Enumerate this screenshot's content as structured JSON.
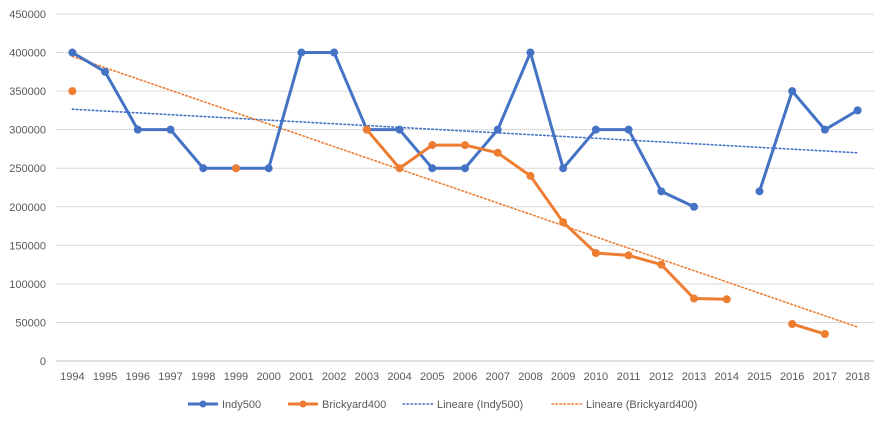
{
  "chart_data": {
    "type": "line",
    "title": "",
    "xlabel": "",
    "ylabel": "",
    "categories": [
      "1994",
      "1995",
      "1996",
      "1997",
      "1998",
      "1999",
      "2000",
      "2001",
      "2002",
      "2003",
      "2004",
      "2005",
      "2006",
      "2007",
      "2008",
      "2009",
      "2010",
      "2011",
      "2012",
      "2013",
      "2014",
      "2015",
      "2016",
      "2017",
      "2018"
    ],
    "ylim": [
      0,
      450000
    ],
    "yticks": [
      0,
      50000,
      100000,
      150000,
      200000,
      250000,
      300000,
      350000,
      400000,
      450000
    ],
    "ytick_labels": [
      "0",
      "50000",
      "100000",
      "150000",
      "200000",
      "250000",
      "300000",
      "350000",
      "400000",
      "450000"
    ],
    "grid": true,
    "legend_position": "bottom",
    "series": [
      {
        "name": "Indy500",
        "color": "#4472C4",
        "values": [
          400000,
          375000,
          300000,
          300000,
          250000,
          250000,
          250000,
          400000,
          400000,
          300000,
          300000,
          250000,
          250000,
          300000,
          400000,
          250000,
          300000,
          300000,
          220000,
          200000,
          null,
          220000,
          350000,
          300000,
          325000
        ]
      },
      {
        "name": "Brickyard400",
        "color": "#ED7D31",
        "values": [
          350000,
          null,
          null,
          null,
          null,
          250000,
          null,
          null,
          null,
          300000,
          250000,
          280000,
          280000,
          270000,
          240000,
          180000,
          140000,
          137000,
          125000,
          81000,
          80000,
          null,
          48000,
          35000,
          null
        ]
      }
    ],
    "trendlines": [
      {
        "name": "Lineare (Indy500)",
        "color": "#4472C4",
        "start": 326500,
        "end": 270000
      },
      {
        "name": "Lineare (Brickyard400)",
        "color": "#ED7D31",
        "start": 395000,
        "end": 44000
      }
    ]
  }
}
